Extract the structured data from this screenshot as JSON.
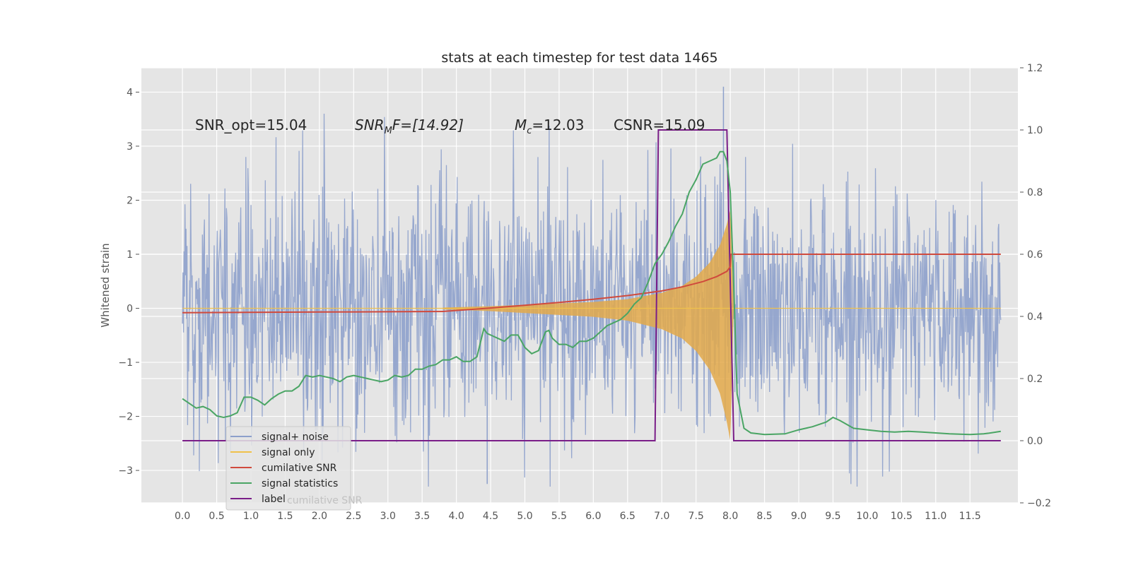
{
  "chart_data": {
    "type": "line",
    "title": "stats at each timestep for test data 1465",
    "xlabel": "",
    "ylabel": "Whitened strain",
    "ylabel_right": "",
    "xlim": [
      -0.6,
      12.2
    ],
    "ylim": [
      -3.6,
      4.45
    ],
    "ylim_right": [
      -0.2,
      1.2
    ],
    "x_ticks": [
      "0.0",
      "0.5",
      "1.0",
      "1.5",
      "2.0",
      "2.5",
      "3.0",
      "3.5",
      "4.0",
      "4.5",
      "5.0",
      "5.5",
      "6.0",
      "6.5",
      "7.0",
      "7.5",
      "8.0",
      "8.5",
      "9.0",
      "9.5",
      "10.0",
      "10.5",
      "11.0",
      "11.5"
    ],
    "y_ticks": [
      "−3",
      "−2",
      "−1",
      "0",
      "1",
      "2",
      "3",
      "4"
    ],
    "y_ticks_right": [
      "−0.2",
      "0.0",
      "0.2",
      "0.4",
      "0.6",
      "0.8",
      "1.0",
      "1.2"
    ],
    "grid": true,
    "legend_position": "lower-left",
    "annotations": {
      "snr_opt": "SNR_opt=15.04",
      "snr_mf_sym": "SNR",
      "snr_mf_sub": "M",
      "snr_mf_rest": "F=[14.92]",
      "mc_sym": "M",
      "mc_sub": "c",
      "mc_rest": "=12.03",
      "csnr": "CSNR=15.09"
    },
    "legend_ghost_text": "cumilative SNR",
    "series": [
      {
        "name": "signal+ noise",
        "color": "#8da0cb",
        "axis": "left",
        "description_free": true,
        "envelope": {
          "x": [
            0,
            11.95
          ],
          "noise_sigma": 1.0,
          "extreme_max": 4.1,
          "extreme_min": -3.25
        }
      },
      {
        "name": "signal only",
        "color": "#f0c14b",
        "axis": "left",
        "chirp": {
          "start": 3.8,
          "merger": 8.0,
          "end_amp_x": 7.98,
          "envelope_x": [
            3.8,
            4.5,
            5,
            5.5,
            6,
            6.5,
            7,
            7.3,
            7.5,
            7.7,
            7.85,
            7.95,
            8.0,
            8.05
          ],
          "envelope_amp": [
            0.01,
            0.03,
            0.05,
            0.07,
            0.09,
            0.13,
            0.22,
            0.32,
            0.45,
            0.65,
            0.9,
            1.2,
            1.4,
            0.0
          ]
        }
      },
      {
        "name": "cumilative SNR",
        "color": "#d04a3d",
        "axis": "right",
        "x": [
          0,
          1,
          2,
          3,
          3.8,
          4.5,
          5,
          5.5,
          6,
          6.5,
          7,
          7.3,
          7.6,
          7.8,
          7.95,
          8.0,
          8.01,
          11.95
        ],
        "y": [
          0.412,
          0.413,
          0.414,
          0.415,
          0.416,
          0.427,
          0.436,
          0.445,
          0.455,
          0.467,
          0.482,
          0.495,
          0.512,
          0.528,
          0.545,
          0.56,
          0.6,
          0.6
        ]
      },
      {
        "name": "signal statistics",
        "color": "#4aa564",
        "axis": "right",
        "x": [
          0,
          0.1,
          0.2,
          0.3,
          0.4,
          0.5,
          0.6,
          0.7,
          0.8,
          0.9,
          1.0,
          1.1,
          1.2,
          1.3,
          1.4,
          1.5,
          1.6,
          1.7,
          1.8,
          1.9,
          2.0,
          2.1,
          2.2,
          2.3,
          2.4,
          2.5,
          2.6,
          2.7,
          2.8,
          2.9,
          3.0,
          3.1,
          3.2,
          3.3,
          3.4,
          3.5,
          3.6,
          3.7,
          3.8,
          3.9,
          4.0,
          4.1,
          4.2,
          4.3,
          4.4,
          4.45,
          4.5,
          4.6,
          4.7,
          4.8,
          4.9,
          5.0,
          5.1,
          5.2,
          5.3,
          5.35,
          5.4,
          5.5,
          5.6,
          5.7,
          5.8,
          5.9,
          6.0,
          6.1,
          6.2,
          6.3,
          6.4,
          6.5,
          6.6,
          6.7,
          6.8,
          6.9,
          7.0,
          7.1,
          7.2,
          7.3,
          7.4,
          7.5,
          7.6,
          7.7,
          7.8,
          7.85,
          7.9,
          7.95,
          8.0,
          8.05,
          8.1,
          8.2,
          8.3,
          8.5,
          8.8,
          9.0,
          9.2,
          9.4,
          9.5,
          9.6,
          9.8,
          10.0,
          10.2,
          10.4,
          10.6,
          10.8,
          11.0,
          11.2,
          11.5,
          11.7,
          11.8,
          11.95
        ],
        "y": [
          0.135,
          0.12,
          0.105,
          0.11,
          0.1,
          0.08,
          0.075,
          0.08,
          0.09,
          0.14,
          0.14,
          0.13,
          0.115,
          0.135,
          0.15,
          0.16,
          0.16,
          0.175,
          0.21,
          0.205,
          0.21,
          0.205,
          0.2,
          0.19,
          0.205,
          0.21,
          0.205,
          0.2,
          0.195,
          0.19,
          0.195,
          0.21,
          0.205,
          0.21,
          0.23,
          0.23,
          0.24,
          0.245,
          0.26,
          0.26,
          0.27,
          0.255,
          0.255,
          0.27,
          0.36,
          0.345,
          0.34,
          0.33,
          0.32,
          0.34,
          0.34,
          0.3,
          0.28,
          0.29,
          0.35,
          0.355,
          0.33,
          0.31,
          0.31,
          0.3,
          0.32,
          0.32,
          0.33,
          0.35,
          0.37,
          0.38,
          0.39,
          0.41,
          0.44,
          0.46,
          0.51,
          0.57,
          0.6,
          0.64,
          0.69,
          0.73,
          0.8,
          0.84,
          0.89,
          0.9,
          0.91,
          0.93,
          0.93,
          0.9,
          0.8,
          0.5,
          0.15,
          0.04,
          0.025,
          0.02,
          0.022,
          0.035,
          0.045,
          0.06,
          0.075,
          0.065,
          0.04,
          0.035,
          0.03,
          0.028,
          0.03,
          0.028,
          0.025,
          0.022,
          0.02,
          0.022,
          0.025,
          0.03
        ]
      },
      {
        "name": "label",
        "color": "#7a1e88",
        "axis": "right",
        "x": [
          0,
          6.9,
          6.95,
          7.95,
          8.05,
          11.95
        ],
        "y": [
          0,
          0,
          1,
          1,
          0,
          0
        ]
      }
    ]
  }
}
